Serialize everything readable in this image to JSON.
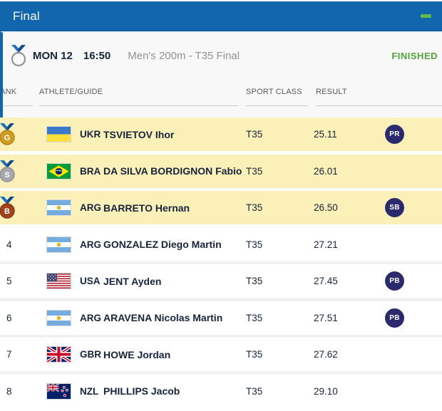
{
  "panel": {
    "title": "Final",
    "collapse_icon": "minus"
  },
  "event": {
    "day": "MON 12",
    "time": "16:50",
    "name": "Men's 200m - T35 Final",
    "status": "FINISHED"
  },
  "table": {
    "headers": {
      "rank": "RANK",
      "athlete": "ATHLETE/GUIDE",
      "sport_class": "SPORT CLASS",
      "result": "RESULT"
    },
    "rows": [
      {
        "rank": "",
        "medal": "G",
        "noc": "UKR",
        "name": "TSVIETOV Ihor",
        "sport_class": "T35",
        "result": "25.11",
        "badge": "PR",
        "highlight": true
      },
      {
        "rank": "",
        "medal": "S",
        "noc": "BRA",
        "name": "DA SILVA BORDIGNON Fabio",
        "sport_class": "T35",
        "result": "26.01",
        "badge": "",
        "highlight": true
      },
      {
        "rank": "",
        "medal": "B",
        "noc": "ARG",
        "name": "BARRETO Hernan",
        "sport_class": "T35",
        "result": "26.50",
        "badge": "SB",
        "highlight": true
      },
      {
        "rank": "4",
        "medal": "",
        "noc": "ARG",
        "name": "GONZALEZ Diego Martin",
        "sport_class": "T35",
        "result": "27.21",
        "badge": "",
        "highlight": false
      },
      {
        "rank": "5",
        "medal": "",
        "noc": "USA",
        "name": "JENT Ayden",
        "sport_class": "T35",
        "result": "27.45",
        "badge": "PB",
        "highlight": false
      },
      {
        "rank": "6",
        "medal": "",
        "noc": "ARG",
        "name": "ARAVENA Nicolas Martin",
        "sport_class": "T35",
        "result": "27.51",
        "badge": "PB",
        "highlight": false
      },
      {
        "rank": "7",
        "medal": "",
        "noc": "GBR",
        "name": "HOWE Jordan",
        "sport_class": "T35",
        "result": "27.62",
        "badge": "",
        "highlight": false
      },
      {
        "rank": "8",
        "medal": "",
        "noc": "NZL",
        "name": "PHILLIPS Jacob",
        "sport_class": "T35",
        "result": "29.10",
        "badge": "",
        "highlight": false
      }
    ]
  },
  "colors": {
    "accent": "#1166ad",
    "highlight_yellow": "#faf0b8",
    "badge_navy": "#2c2a6e",
    "status_green": "#53a43c",
    "gold": "#cf9c1d",
    "silver": "#a7a7ab",
    "bronze": "#a2421a",
    "text_dark": "#16243d",
    "text_gray": "#8f9296"
  }
}
